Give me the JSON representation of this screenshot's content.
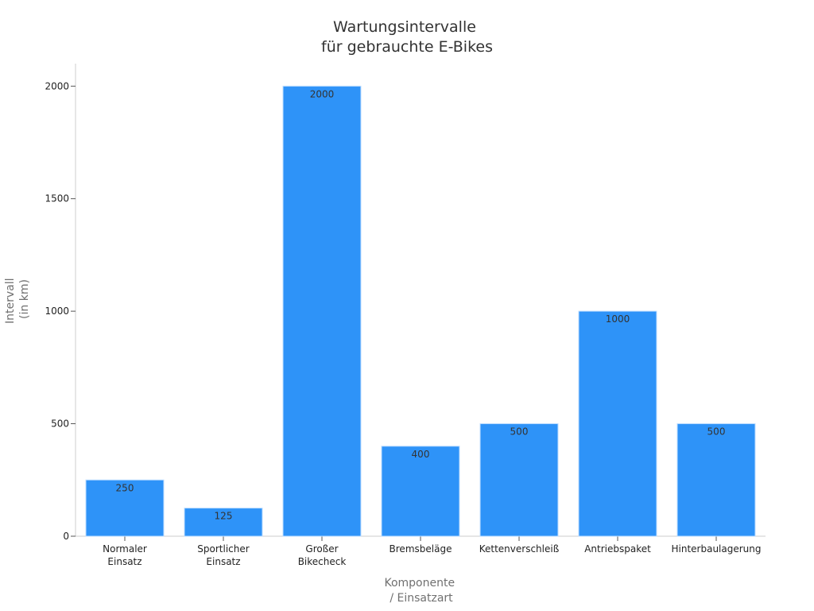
{
  "chart_data": {
    "type": "bar",
    "title": [
      "Wartungsintervalle",
      "für gebrauchte E-Bikes"
    ],
    "xlabel": [
      "Komponente",
      "/ Einsatzart"
    ],
    "ylabel": [
      "Intervall",
      "(in km)"
    ],
    "categories": [
      [
        "Normaler",
        "Einsatz"
      ],
      [
        "Sportlicher",
        "Einsatz"
      ],
      [
        "Großer",
        "Bikecheck"
      ],
      [
        "Bremsbeläge"
      ],
      [
        "Kettenverschleiß"
      ],
      [
        "Antriebspaket"
      ],
      [
        "Hinterbaulagerung"
      ]
    ],
    "values": [
      250,
      125,
      2000,
      400,
      500,
      1000,
      500
    ],
    "ylim": [
      0,
      2100
    ],
    "yticks": [
      0,
      500,
      1000,
      1500,
      2000
    ],
    "grid": false,
    "legend": "none",
    "colors": {
      "bar": "#2e93f8",
      "bar_edge": "#bcdcff"
    }
  }
}
